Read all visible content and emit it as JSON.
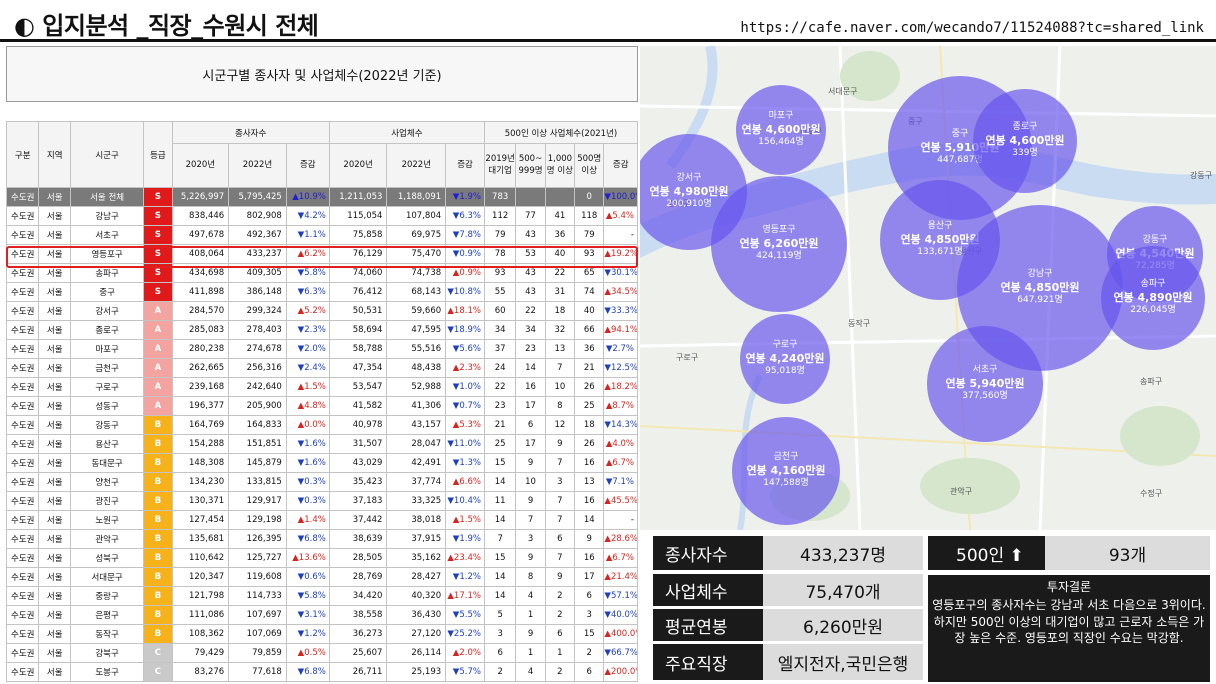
{
  "header": {
    "title": "◐ 입지분석 _직장_수원시 전체",
    "url": "https://cafe.naver.com/wecando7/11524088?tc=shared_link"
  },
  "table_title": "시군구별 종사자 및 사업체수(2022년 기준)",
  "table": {
    "h1": [
      "구분",
      "지역",
      "시군구",
      "등급",
      "종사자수",
      "사업체수",
      "500인 이상 사업체수(2021년)"
    ],
    "h2": [
      "2020년",
      "2022년",
      "증감",
      "2020년",
      "2022년",
      "증감",
      "2019년 대기업",
      "500~ 999명",
      "1,000명 이상",
      "500명 이상",
      "증감"
    ],
    "grade_colors": {
      "S": "#e0191b",
      "A": "#f3a3a0",
      "B": "#f6b21a",
      "C": "#c9c9c9"
    },
    "rows": [
      [
        "수도권",
        "서울",
        "서울 전체",
        "S",
        "5,226,997",
        "5,795,425",
        "▲10.9%",
        "1,211,053",
        "1,188,091",
        "▼1.9%",
        "783",
        "",
        "",
        "0",
        "▼100.0%"
      ],
      [
        "수도권",
        "서울",
        "강남구",
        "S",
        "838,446",
        "802,908",
        "▼4.2%",
        "115,054",
        "107,804",
        "▼6.3%",
        "112",
        "77",
        "41",
        "118",
        "▲5.4%"
      ],
      [
        "수도권",
        "서울",
        "서초구",
        "S",
        "497,678",
        "492,367",
        "▼1.1%",
        "75,858",
        "69,975",
        "▼7.8%",
        "79",
        "43",
        "36",
        "79",
        "-"
      ],
      [
        "수도권",
        "서울",
        "영등포구",
        "S",
        "408,064",
        "433,237",
        "▲6.2%",
        "76,129",
        "75,470",
        "▼0.9%",
        "78",
        "53",
        "40",
        "93",
        "▲19.2%"
      ],
      [
        "수도권",
        "서울",
        "송파구",
        "S",
        "434,698",
        "409,305",
        "▼5.8%",
        "74,060",
        "74,738",
        "▲0.9%",
        "93",
        "43",
        "22",
        "65",
        "▼30.1%"
      ],
      [
        "수도권",
        "서울",
        "중구",
        "S",
        "411,898",
        "386,148",
        "▼6.3%",
        "76,412",
        "68,143",
        "▼10.8%",
        "55",
        "43",
        "31",
        "74",
        "▲34.5%"
      ],
      [
        "수도권",
        "서울",
        "강서구",
        "A",
        "284,570",
        "299,324",
        "▲5.2%",
        "50,531",
        "59,660",
        "▲18.1%",
        "60",
        "22",
        "18",
        "40",
        "▼33.3%"
      ],
      [
        "수도권",
        "서울",
        "종로구",
        "A",
        "285,083",
        "278,403",
        "▼2.3%",
        "58,694",
        "47,595",
        "▼18.9%",
        "34",
        "34",
        "32",
        "66",
        "▲94.1%"
      ],
      [
        "수도권",
        "서울",
        "마포구",
        "A",
        "280,238",
        "274,678",
        "▼2.0%",
        "58,788",
        "55,516",
        "▼5.6%",
        "37",
        "23",
        "13",
        "36",
        "▼2.7%"
      ],
      [
        "수도권",
        "서울",
        "금천구",
        "A",
        "262,665",
        "256,316",
        "▼2.4%",
        "47,354",
        "48,438",
        "▲2.3%",
        "24",
        "14",
        "7",
        "21",
        "▼12.5%"
      ],
      [
        "수도권",
        "서울",
        "구로구",
        "A",
        "239,168",
        "242,640",
        "▲1.5%",
        "53,547",
        "52,988",
        "▼1.0%",
        "22",
        "16",
        "10",
        "26",
        "▲18.2%"
      ],
      [
        "수도권",
        "서울",
        "성동구",
        "A",
        "196,377",
        "205,900",
        "▲4.8%",
        "41,582",
        "41,306",
        "▼0.7%",
        "23",
        "17",
        "8",
        "25",
        "▲8.7%"
      ],
      [
        "수도권",
        "서울",
        "강동구",
        "B",
        "164,769",
        "164,833",
        "▲0.0%",
        "40,978",
        "43,157",
        "▲5.3%",
        "21",
        "6",
        "12",
        "18",
        "▼14.3%"
      ],
      [
        "수도권",
        "서울",
        "용산구",
        "B",
        "154,288",
        "151,851",
        "▼1.6%",
        "31,507",
        "28,047",
        "▼11.0%",
        "25",
        "17",
        "9",
        "26",
        "▲4.0%"
      ],
      [
        "수도권",
        "서울",
        "동대문구",
        "B",
        "148,308",
        "145,879",
        "▼1.6%",
        "43,029",
        "42,491",
        "▼1.3%",
        "15",
        "9",
        "7",
        "16",
        "▲6.7%"
      ],
      [
        "수도권",
        "서울",
        "양천구",
        "B",
        "134,230",
        "133,815",
        "▼0.3%",
        "35,423",
        "37,774",
        "▲6.6%",
        "14",
        "10",
        "3",
        "13",
        "▼7.1%"
      ],
      [
        "수도권",
        "서울",
        "광진구",
        "B",
        "130,371",
        "129,917",
        "▼0.3%",
        "37,183",
        "33,325",
        "▼10.4%",
        "11",
        "9",
        "7",
        "16",
        "▲45.5%"
      ],
      [
        "수도권",
        "서울",
        "노원구",
        "B",
        "127,454",
        "129,198",
        "▲1.4%",
        "37,442",
        "38,018",
        "▲1.5%",
        "14",
        "7",
        "7",
        "14",
        "-"
      ],
      [
        "수도권",
        "서울",
        "관악구",
        "B",
        "135,681",
        "126,395",
        "▼6.8%",
        "38,639",
        "37,915",
        "▼1.9%",
        "7",
        "3",
        "6",
        "9",
        "▲28.6%"
      ],
      [
        "수도권",
        "서울",
        "성북구",
        "B",
        "110,642",
        "125,727",
        "▲13.6%",
        "28,505",
        "35,162",
        "▲23.4%",
        "15",
        "9",
        "7",
        "16",
        "▲6.7%"
      ],
      [
        "수도권",
        "서울",
        "서대문구",
        "B",
        "120,347",
        "119,608",
        "▼0.6%",
        "28,769",
        "28,427",
        "▼1.2%",
        "14",
        "8",
        "9",
        "17",
        "▲21.4%"
      ],
      [
        "수도권",
        "서울",
        "중랑구",
        "B",
        "121,798",
        "114,733",
        "▼5.8%",
        "34,420",
        "40,320",
        "▲17.1%",
        "14",
        "4",
        "2",
        "6",
        "▼57.1%"
      ],
      [
        "수도권",
        "서울",
        "은평구",
        "B",
        "111,086",
        "107,697",
        "▼3.1%",
        "38,558",
        "36,430",
        "▼5.5%",
        "5",
        "1",
        "2",
        "3",
        "▼40.0%"
      ],
      [
        "수도권",
        "서울",
        "동작구",
        "B",
        "108,362",
        "107,069",
        "▼1.2%",
        "36,273",
        "27,120",
        "▼25.2%",
        "3",
        "9",
        "6",
        "15",
        "▲400.0%"
      ],
      [
        "수도권",
        "서울",
        "강북구",
        "C",
        "79,429",
        "79,859",
        "▲0.5%",
        "25,607",
        "26,114",
        "▲2.0%",
        "6",
        "1",
        "1",
        "2",
        "▼66.7%"
      ],
      [
        "수도권",
        "서울",
        "도봉구",
        "C",
        "83,276",
        "77,618",
        "▼6.8%",
        "26,711",
        "25,193",
        "▼5.7%",
        "2",
        "4",
        "2",
        "6",
        "▲200.0%"
      ]
    ]
  },
  "map": {
    "labels": [
      "강서구",
      "중구",
      "동작구",
      "관악구",
      "구로구",
      "강동구",
      "마포구",
      "송파구",
      "서대문구",
      "용산구",
      "수정구"
    ],
    "bubbles": [
      {
        "name": "마포구",
        "salary": "연봉 4,600만원",
        "people": "156,464명"
      },
      {
        "name": "중구",
        "salary": "연봉 5,910만원",
        "people": "447,687명"
      },
      {
        "name": "종로구",
        "salary": "연봉 4,600만원",
        "people": "339명"
      },
      {
        "name": "강서구",
        "salary": "연봉 4,980만원",
        "people": "200,910명"
      },
      {
        "name": "영등포구",
        "salary": "연봉 6,260만원",
        "people": "424,119명"
      },
      {
        "name": "용산구",
        "salary": "연봉 4,850만원",
        "people": "133,671명"
      },
      {
        "name": "강남구",
        "salary": "연봉 4,850만원",
        "people": "647,921명"
      },
      {
        "name": "강동구",
        "salary": "연봉 4,540만원",
        "people": "72,285명"
      },
      {
        "name": "송파구",
        "salary": "연봉 4,890만원",
        "people": "226,045명"
      },
      {
        "name": "구로구",
        "salary": "연봉 4,240만원",
        "people": "95,018명"
      },
      {
        "name": "서초구",
        "salary": "연봉 5,940만원",
        "people": "377,560명"
      },
      {
        "name": "금천구",
        "salary": "연봉 4,160만원",
        "people": "147,588명"
      }
    ]
  },
  "summary": {
    "employees_label": "종사자수",
    "employees_value": "433,237명",
    "big_label": "500인 ⬆",
    "big_value": "93개",
    "business_label": "사업체수",
    "business_value": "75,470개",
    "salary_label": "평균연봉",
    "salary_value": "6,260만원",
    "jobs_label": "주요직장",
    "jobs_value": "엘지전자,국민은행",
    "conclusion_title": "투자결론",
    "conclusion_body": "영등포구의 종사자수는 강남과 서초 다음으로 3위이다. 하지만 500인 이상의 대기업이 많고 근로자 소득은 가장 높은 수준. 영등포의 직장인 수요는 막강함."
  }
}
